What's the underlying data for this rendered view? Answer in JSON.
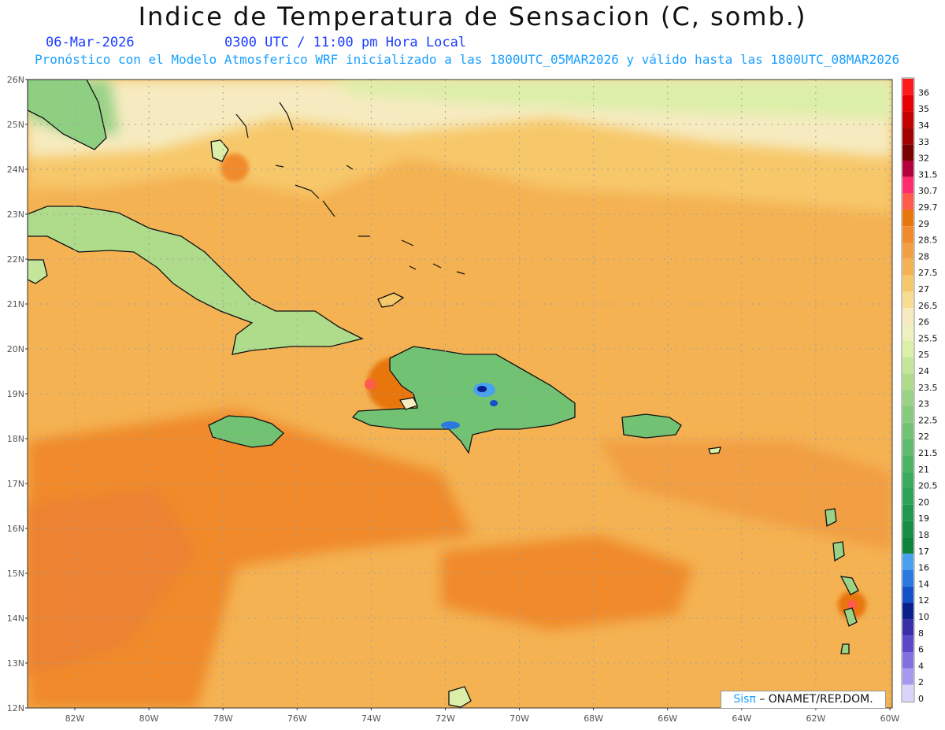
{
  "header": {
    "title": "Indice de Temperatura de Sensacion (C, somb.)",
    "date": "06-Mar-2026",
    "time": "0300 UTC / 11:00 pm Hora Local",
    "subtitle": "Pronóstico con el Modelo Atmosferico WRF inicializado a las 1800UTC_05MAR2026 y válido hasta las  1800UTC_08MAR2026"
  },
  "map": {
    "lat_labels": [
      "12N",
      "13N",
      "14N",
      "15N",
      "16N",
      "17N",
      "18N",
      "19N",
      "20N",
      "21N",
      "22N",
      "23N",
      "24N",
      "25N",
      "26N"
    ],
    "lon_labels": [
      "82W",
      "80W",
      "78W",
      "76W",
      "74W",
      "72W",
      "70W",
      "68W",
      "66W",
      "64W",
      "62W",
      "60W"
    ],
    "background_color": "#f0a04a"
  },
  "legend": {
    "levels": [
      {
        "label": "36",
        "color": "#ff1a1a"
      },
      {
        "label": "35",
        "color": "#e60000"
      },
      {
        "label": "34",
        "color": "#c40000"
      },
      {
        "label": "33",
        "color": "#a30000"
      },
      {
        "label": "32",
        "color": "#7a0000"
      },
      {
        "label": "31.5",
        "color": "#b3003c"
      },
      {
        "label": "30.7",
        "color": "#ff2d6e"
      },
      {
        "label": "29.7",
        "color": "#ff5a4a"
      },
      {
        "label": "29",
        "color": "#e8760a"
      },
      {
        "label": "28.5",
        "color": "#f08a2a"
      },
      {
        "label": "28",
        "color": "#f29e42"
      },
      {
        "label": "27.5",
        "color": "#f4b252"
      },
      {
        "label": "27",
        "color": "#f7c86a"
      },
      {
        "label": "26.5",
        "color": "#f8dc92"
      },
      {
        "label": "26",
        "color": "#f6ebc0"
      },
      {
        "label": "25.5",
        "color": "#eef0c0"
      },
      {
        "label": "25",
        "color": "#dcefa8"
      },
      {
        "label": "24",
        "color": "#c4e69a"
      },
      {
        "label": "23.5",
        "color": "#aedc8a"
      },
      {
        "label": "23",
        "color": "#9ad286"
      },
      {
        "label": "22.5",
        "color": "#86ca7e"
      },
      {
        "label": "22",
        "color": "#72c274"
      },
      {
        "label": "21.5",
        "color": "#5eba6c"
      },
      {
        "label": "21",
        "color": "#4cb264"
      },
      {
        "label": "20.5",
        "color": "#3aaa5c"
      },
      {
        "label": "20",
        "color": "#2ea256"
      },
      {
        "label": "19",
        "color": "#22984e"
      },
      {
        "label": "18",
        "color": "#168e44"
      },
      {
        "label": "17",
        "color": "#0c843a"
      },
      {
        "label": "16",
        "color": "#4aa0f0"
      },
      {
        "label": "14",
        "color": "#2a78e0"
      },
      {
        "label": "12",
        "color": "#1450c8"
      },
      {
        "label": "10",
        "color": "#0a1f8c"
      },
      {
        "label": "8",
        "color": "#3a2ea8"
      },
      {
        "label": "6",
        "color": "#5a48c8"
      },
      {
        "label": "4",
        "color": "#8070e0"
      },
      {
        "label": "2",
        "color": "#a898f0"
      },
      {
        "label": "0",
        "color": "#d8d4fa"
      }
    ]
  },
  "credit": {
    "sis": "Sisπ",
    "org": "– ONAMET/REP.DOM."
  }
}
